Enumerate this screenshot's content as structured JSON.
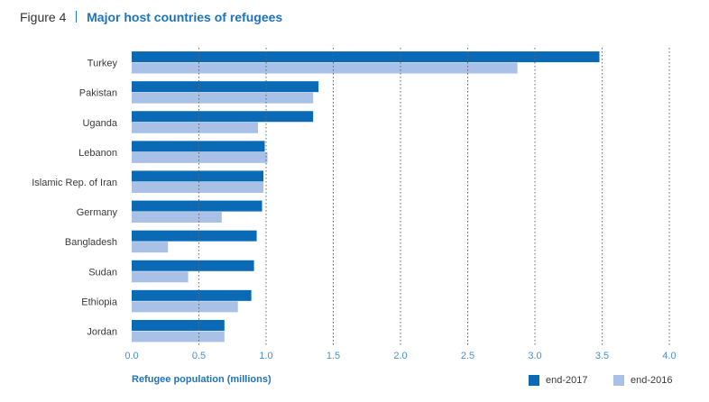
{
  "figure": {
    "label": "Figure 4",
    "title": "Major host countries of refugees"
  },
  "colors": {
    "accent": "#1e73be",
    "series_2017": "#0a6ab5",
    "series_2016": "#a9c1e6",
    "gridline": "#666666",
    "axis_text": "#4a90c8"
  },
  "chart_data": {
    "type": "bar",
    "orientation": "horizontal",
    "title": "Major host countries of refugees",
    "xlabel": "Refugee population (millions)",
    "ylabel": "",
    "categories": [
      "Turkey",
      "Pakistan",
      "Uganda",
      "Lebanon",
      "Islamic Rep. of Iran",
      "Germany",
      "Bangladesh",
      "Sudan",
      "Ethiopia",
      "Jordan"
    ],
    "series": [
      {
        "name": "end-2017",
        "values": [
          3.48,
          1.39,
          1.35,
          0.99,
          0.98,
          0.97,
          0.93,
          0.91,
          0.89,
          0.69
        ]
      },
      {
        "name": "end-2016",
        "values": [
          2.87,
          1.35,
          0.94,
          1.01,
          0.98,
          0.67,
          0.27,
          0.42,
          0.79,
          0.69
        ]
      }
    ],
    "xlim": [
      0,
      4.0
    ],
    "xticks": [
      "0.0",
      "0.5",
      "1.0",
      "1.5",
      "2.0",
      "2.5",
      "3.0",
      "3.5",
      "4.0"
    ],
    "grid": "vertical dotted",
    "legend_position": "bottom-right"
  }
}
